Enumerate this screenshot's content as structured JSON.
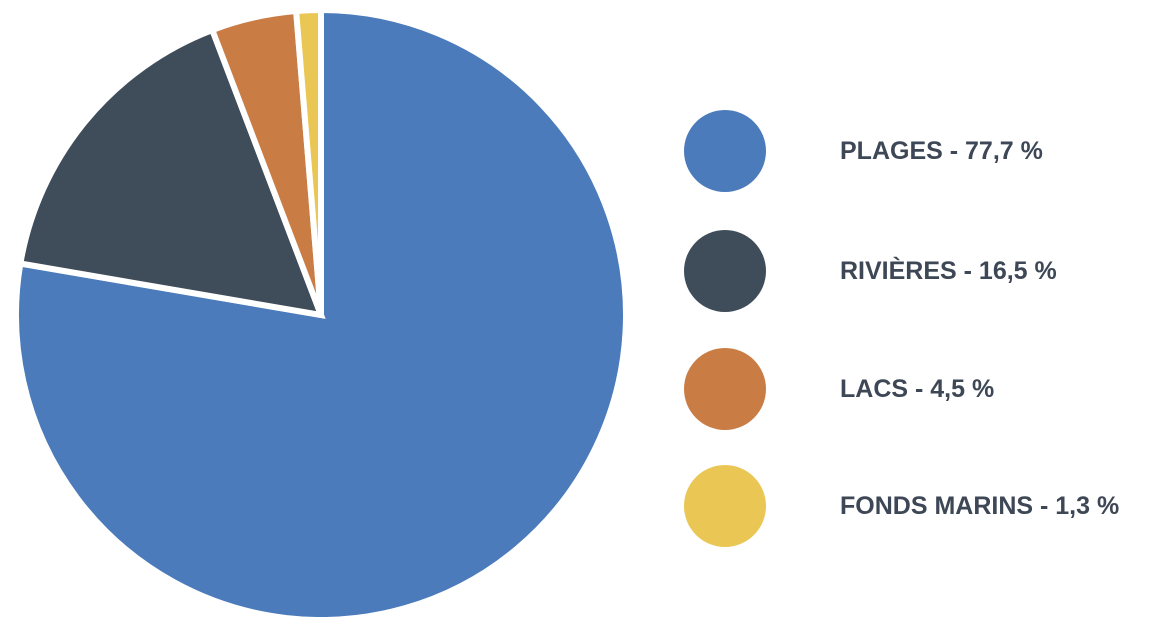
{
  "chart_data": {
    "type": "pie",
    "categories": [
      "PLAGES",
      "RIVIÈRES",
      "LACS",
      "FONDS MARINS"
    ],
    "values": [
      77.7,
      16.5,
      4.5,
      1.3
    ],
    "colors": [
      "#4b7bbb",
      "#3f4c5a",
      "#c97d45",
      "#eac755"
    ],
    "legend": {
      "placement": "right",
      "labels": [
        "PLAGES - 77,7 %",
        "RIVIÈRES - 16,5 %",
        "LACS - 4,5 %",
        "FONDS MARINS - 1,3 %"
      ]
    }
  }
}
